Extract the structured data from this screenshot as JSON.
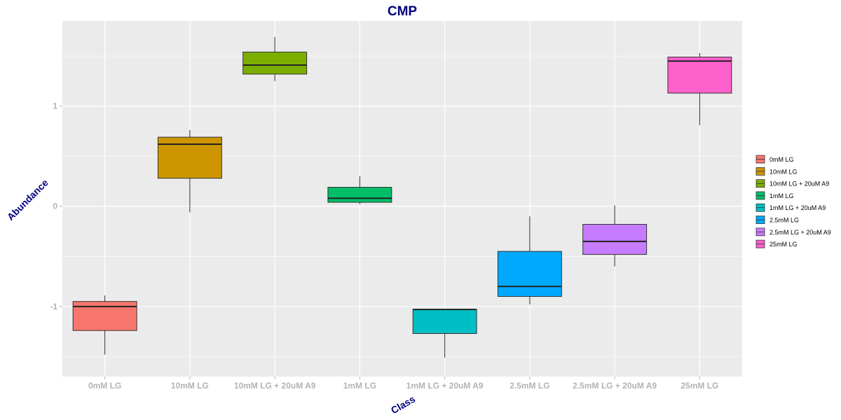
{
  "chart_data": {
    "type": "boxplot",
    "title": "CMP",
    "xlabel": "Class",
    "ylabel": "Abundance",
    "ylim": [
      -1.7,
      1.85
    ],
    "yticks": [
      -1,
      0,
      1
    ],
    "grid": true,
    "legend_position": "right",
    "categories": [
      "0mM LG",
      "10mM LG",
      "10mM LG + 20uM A9",
      "1mM LG",
      "1mM LG + 20uM A9",
      "2.5mM LG",
      "2.5mM LG + 20uM A9",
      "25mM LG"
    ],
    "colors": [
      "#F8766D",
      "#CD9600",
      "#7CAE00",
      "#00BE67",
      "#00BFC4",
      "#00A9FF",
      "#C77CFF",
      "#FF61CC"
    ],
    "boxes": [
      {
        "min": -1.48,
        "q1": -1.24,
        "median": -1.0,
        "q3": -0.95,
        "max": -0.89
      },
      {
        "min": -0.06,
        "q1": 0.28,
        "median": 0.62,
        "q3": 0.69,
        "max": 0.76
      },
      {
        "min": 1.25,
        "q1": 1.32,
        "median": 1.41,
        "q3": 1.54,
        "max": 1.69
      },
      {
        "min": 0.02,
        "q1": 0.04,
        "median": 0.08,
        "q3": 0.19,
        "max": 0.3
      },
      {
        "min": -1.51,
        "q1": -1.27,
        "median": -1.03,
        "q3": -1.03,
        "max": -1.03
      },
      {
        "min": -0.98,
        "q1": -0.9,
        "median": -0.8,
        "q3": -0.45,
        "max": -0.1
      },
      {
        "min": -0.6,
        "q1": -0.48,
        "median": -0.35,
        "q3": -0.18,
        "max": 0.01
      },
      {
        "min": 0.81,
        "q1": 1.13,
        "median": 1.45,
        "q3": 1.49,
        "max": 1.53
      }
    ]
  }
}
